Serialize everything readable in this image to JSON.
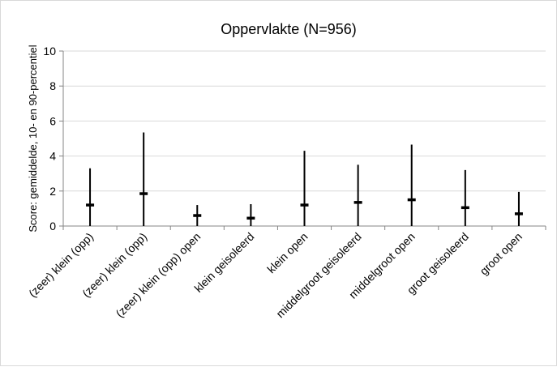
{
  "chart_data": {
    "type": "range",
    "title": "Oppervlakte (N=956)",
    "ylabel": "Score: gemiddelde, 10- en 90-percentiel",
    "xlabel": "",
    "ylim": [
      0,
      10
    ],
    "yticks": [
      0,
      2,
      4,
      6,
      8,
      10
    ],
    "grid": "horizontal",
    "categories": [
      "(zeer) klein (opp)",
      "(zeer) klein (opp)",
      "(zeer) klein (opp) open",
      "klein geisoleerd",
      "klein open",
      "middelgroot geisoleerd",
      "middelgroot open",
      "groot geisoleerd",
      "groot open"
    ],
    "series": [
      {
        "name": "gemiddelde",
        "values": [
          1.2,
          1.85,
          0.6,
          0.45,
          1.2,
          1.35,
          1.5,
          1.05,
          0.7
        ]
      },
      {
        "name": "10-percentiel",
        "values": [
          0,
          0,
          0,
          0,
          0,
          0,
          0,
          0,
          0
        ]
      },
      {
        "name": "90-percentiel",
        "values": [
          3.3,
          5.35,
          1.2,
          1.25,
          4.3,
          3.5,
          4.65,
          3.2,
          1.95
        ]
      }
    ],
    "colors": {
      "line": "#000000",
      "grid": "#d9d9d9",
      "axis": "#868686"
    }
  }
}
